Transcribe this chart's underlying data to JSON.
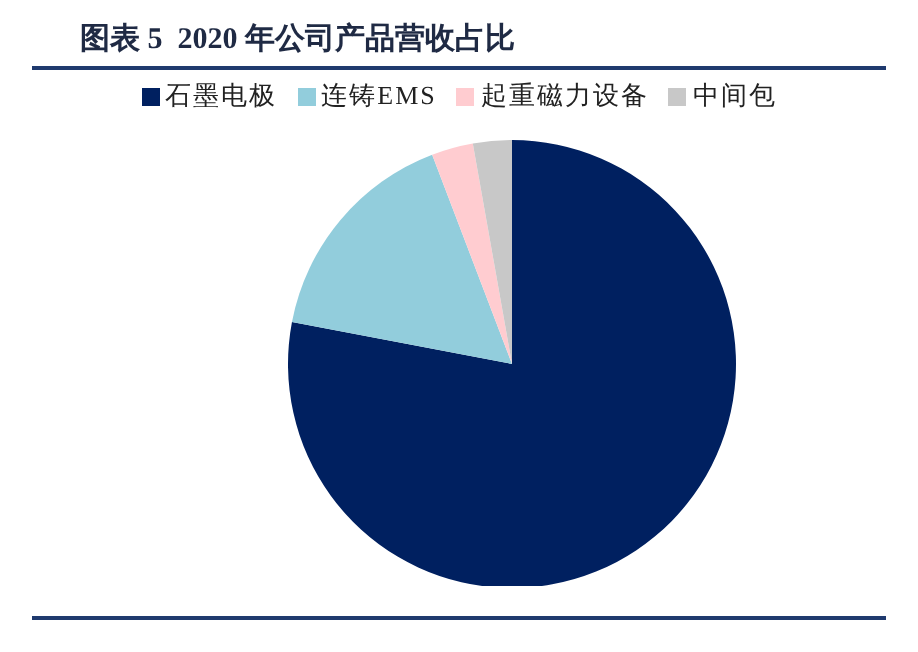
{
  "chart_data": {
    "type": "pie",
    "title": "图表 5  2020 年公司产品营收占比",
    "categories": [
      "石墨电极",
      "连铸EMS",
      "起重磁力设备",
      "中间包"
    ],
    "values": [
      78.0,
      16.2,
      3.0,
      2.8
    ],
    "colors": [
      "#002060",
      "#92cddc",
      "#ffccd0",
      "#c8c8c8"
    ],
    "legend": "top"
  }
}
